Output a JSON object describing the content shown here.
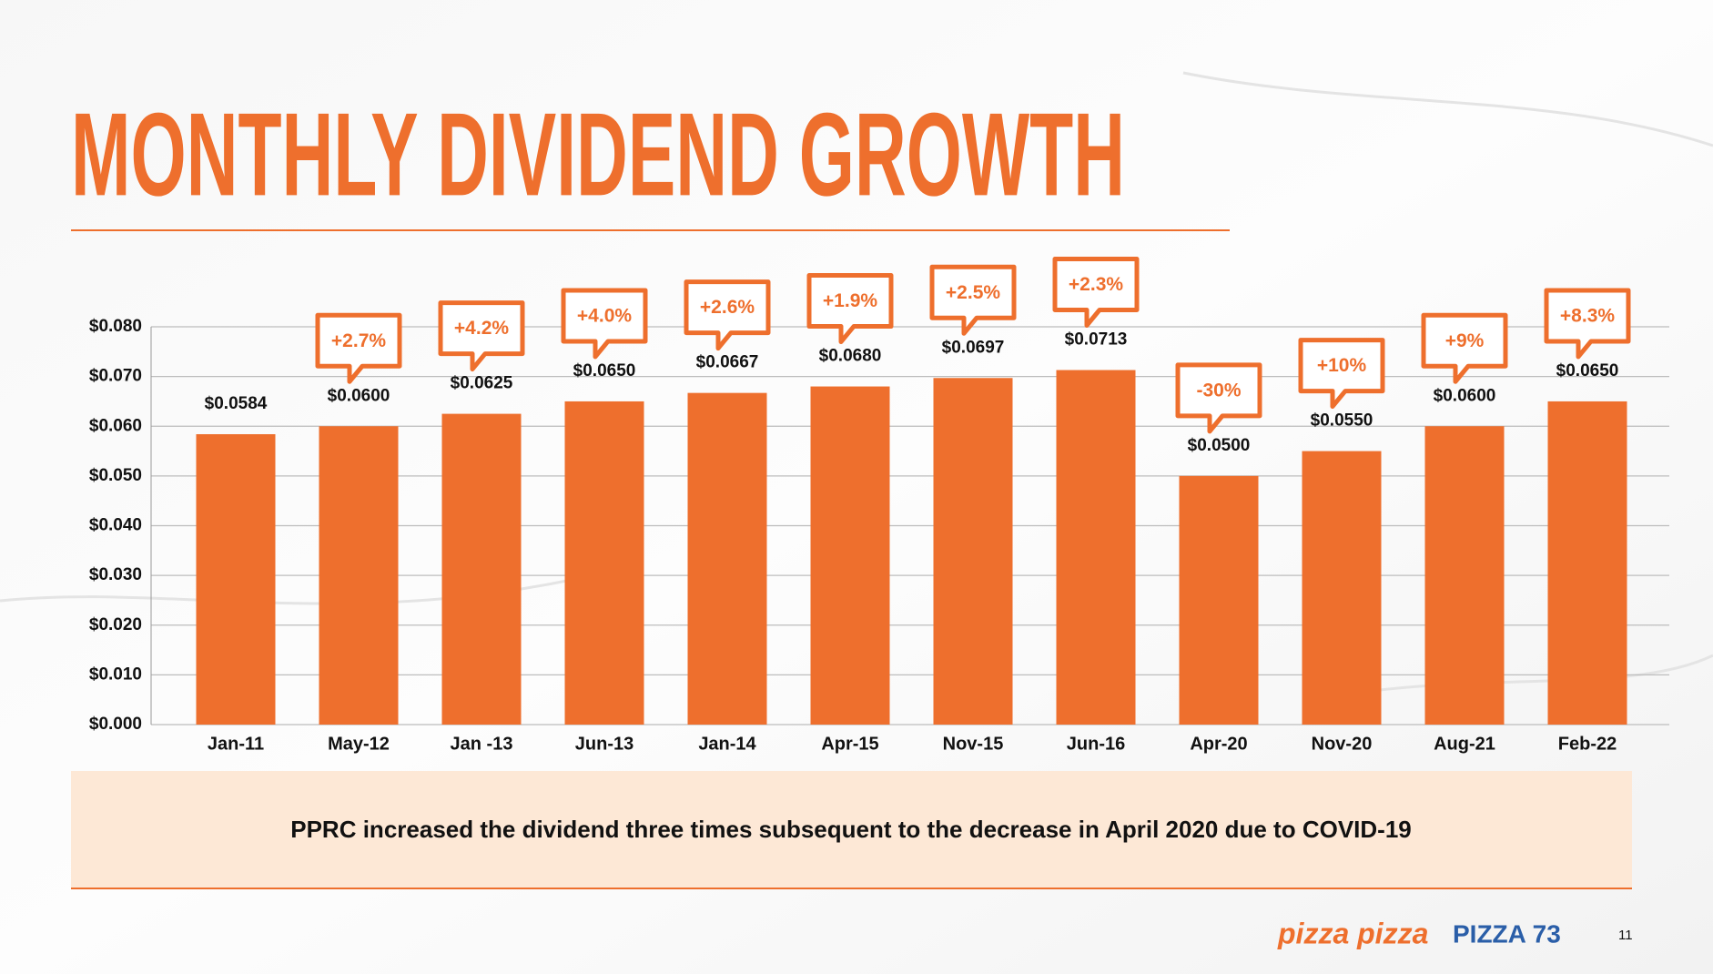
{
  "chart_data": {
    "type": "bar",
    "title": "MONTHLY DIVIDEND GROWTH",
    "categories": [
      "Jan-11",
      "May-12",
      "Jan -13",
      "Jun-13",
      "Jan-14",
      "Apr-15",
      "Nov-15",
      "Jun-16",
      "Apr-20",
      "Nov-20",
      "Aug-21",
      "Feb-22"
    ],
    "values": [
      0.0584,
      0.06,
      0.0625,
      0.065,
      0.0667,
      0.068,
      0.0697,
      0.0713,
      0.05,
      0.055,
      0.06,
      0.065
    ],
    "value_labels": [
      "$0.0584",
      "$0.0600",
      "$0.0625",
      "$0.0650",
      "$0.0667",
      "$0.0680",
      "$0.0697",
      "$0.0713",
      "$0.0500",
      "$0.0550",
      "$0.0600",
      "$0.0650"
    ],
    "annotations": [
      null,
      "+2.7%",
      "+4.2%",
      "+4.0%",
      "+2.6%",
      "+1.9%",
      "+2.5%",
      "+2.3%",
      "-30%",
      "+10%",
      "+9%",
      "+8.3%"
    ],
    "color": "#ee6f2d",
    "ylim": [
      0,
      0.08
    ],
    "yticks": [
      {
        "value": 0,
        "label": "$0.000"
      },
      {
        "value": 0.01,
        "label": "$0.010"
      },
      {
        "value": 0.02,
        "label": "$0.020"
      },
      {
        "value": 0.03,
        "label": "$0.030"
      },
      {
        "value": 0.04,
        "label": "$0.040"
      },
      {
        "value": 0.05,
        "label": "$0.050"
      },
      {
        "value": 0.06,
        "label": "$0.060"
      },
      {
        "value": 0.07,
        "label": "$0.070"
      },
      {
        "value": 0.08,
        "label": "$0.080"
      }
    ],
    "grid": true
  },
  "note": "PPRC increased the dividend three times subsequent to the decrease in April 2020 due to COVID-19",
  "footer": {
    "logo": "pizza pizza",
    "brand": "PIZZA 73",
    "page": "11"
  }
}
